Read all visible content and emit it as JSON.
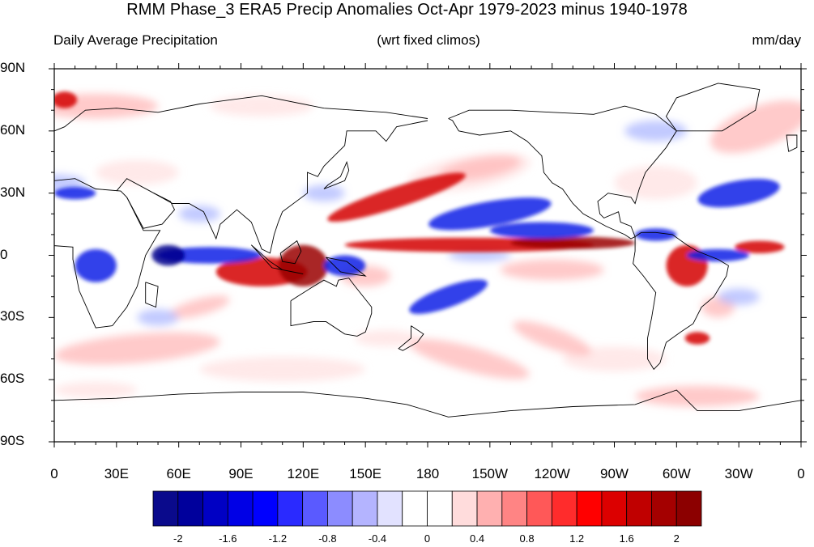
{
  "title": "RMM Phase_3 ERA5 Precip Anomalies Oct-Apr 1979-2023 minus 1940-1978",
  "subtitle_left": "Daily Average Precipitation",
  "subtitle_center": "(wrt fixed climos)",
  "subtitle_right": "mm/day",
  "lat_labels": [
    "90N",
    "60N",
    "30N",
    "0",
    "30S",
    "60S",
    "90S"
  ],
  "lon_labels": [
    "0",
    "30E",
    "60E",
    "90E",
    "120E",
    "150E",
    "180",
    "150W",
    "120W",
    "90W",
    "60W",
    "30W",
    "0"
  ],
  "colorbar": {
    "colors": [
      "#0a0a8c",
      "#00009c",
      "#0000c4",
      "#0000e6",
      "#0000ff",
      "#2a2aff",
      "#5a5aff",
      "#8c8cff",
      "#b4b4ff",
      "#e2e2ff",
      "#ffffff",
      "#ffffff",
      "#ffdcdc",
      "#ffb0b0",
      "#ff8484",
      "#ff5858",
      "#ff2c2c",
      "#ff0000",
      "#dc0000",
      "#c00000",
      "#a40000",
      "#8c0000"
    ],
    "labels": [
      "-2",
      "-1.6",
      "-1.2",
      "-0.8",
      "-0.4",
      "0",
      "0.4",
      "0.8",
      "1.2",
      "1.6",
      "2"
    ]
  },
  "palette": {
    "red": "#d40000",
    "dark_red": "#9a0000",
    "pink": "#ffb4b4",
    "light_pink": "#ffe0e0",
    "blue": "#0a1ee6",
    "dark_blue": "#00008c",
    "light_blue": "#a8b4ff",
    "coast": "#000000"
  }
}
